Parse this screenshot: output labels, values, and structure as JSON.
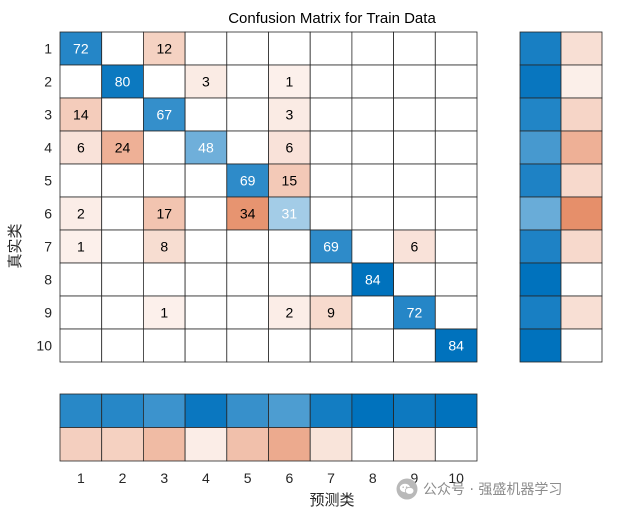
{
  "chart_data": {
    "type": "heatmap",
    "title": "Confusion Matrix for Train Data",
    "xlabel": "预测类",
    "ylabel": "真实类",
    "row_labels": [
      "1",
      "2",
      "3",
      "4",
      "5",
      "6",
      "7",
      "8",
      "9",
      "10"
    ],
    "col_labels": [
      "1",
      "2",
      "3",
      "4",
      "5",
      "6",
      "7",
      "8",
      "9",
      "10"
    ],
    "matrix": [
      [
        72,
        0,
        12,
        0,
        0,
        0,
        0,
        0,
        0,
        0
      ],
      [
        0,
        80,
        0,
        3,
        0,
        1,
        0,
        0,
        0,
        0
      ],
      [
        14,
        0,
        67,
        0,
        0,
        3,
        0,
        0,
        0,
        0
      ],
      [
        6,
        24,
        0,
        48,
        0,
        6,
        0,
        0,
        0,
        0
      ],
      [
        0,
        0,
        0,
        0,
        69,
        15,
        0,
        0,
        0,
        0
      ],
      [
        2,
        0,
        17,
        0,
        34,
        31,
        0,
        0,
        0,
        0
      ],
      [
        1,
        0,
        8,
        0,
        0,
        0,
        69,
        0,
        6,
        0
      ],
      [
        0,
        0,
        0,
        0,
        0,
        0,
        0,
        84,
        0,
        0
      ],
      [
        0,
        0,
        1,
        0,
        0,
        2,
        9,
        0,
        72,
        0
      ],
      [
        0,
        0,
        0,
        0,
        0,
        0,
        0,
        0,
        0,
        84
      ]
    ],
    "row_summary": {
      "correct_fraction": [
        0.857,
        0.952,
        0.798,
        0.571,
        0.821,
        0.369,
        0.821,
        1.0,
        0.857,
        1.0
      ],
      "incorrect_fraction": [
        0.143,
        0.048,
        0.202,
        0.429,
        0.179,
        0.631,
        0.179,
        0.0,
        0.143,
        0.0
      ]
    },
    "column_summary": {
      "correct_fraction": [
        0.758,
        0.769,
        0.638,
        0.941,
        0.67,
        0.534,
        0.885,
        1.0,
        0.923,
        1.0
      ],
      "incorrect_fraction": [
        0.242,
        0.231,
        0.362,
        0.059,
        0.33,
        0.466,
        0.115,
        0.0,
        0.077,
        0.0
      ]
    },
    "colors": {
      "correct": "#0072BD",
      "incorrect": "#D95319",
      "grid": "#262626",
      "text_dark": "#000000",
      "text_light": "#ffffff"
    }
  },
  "watermark": {
    "text": "公众号 · 强盛机器学习",
    "icon": "wechat-icon"
  }
}
